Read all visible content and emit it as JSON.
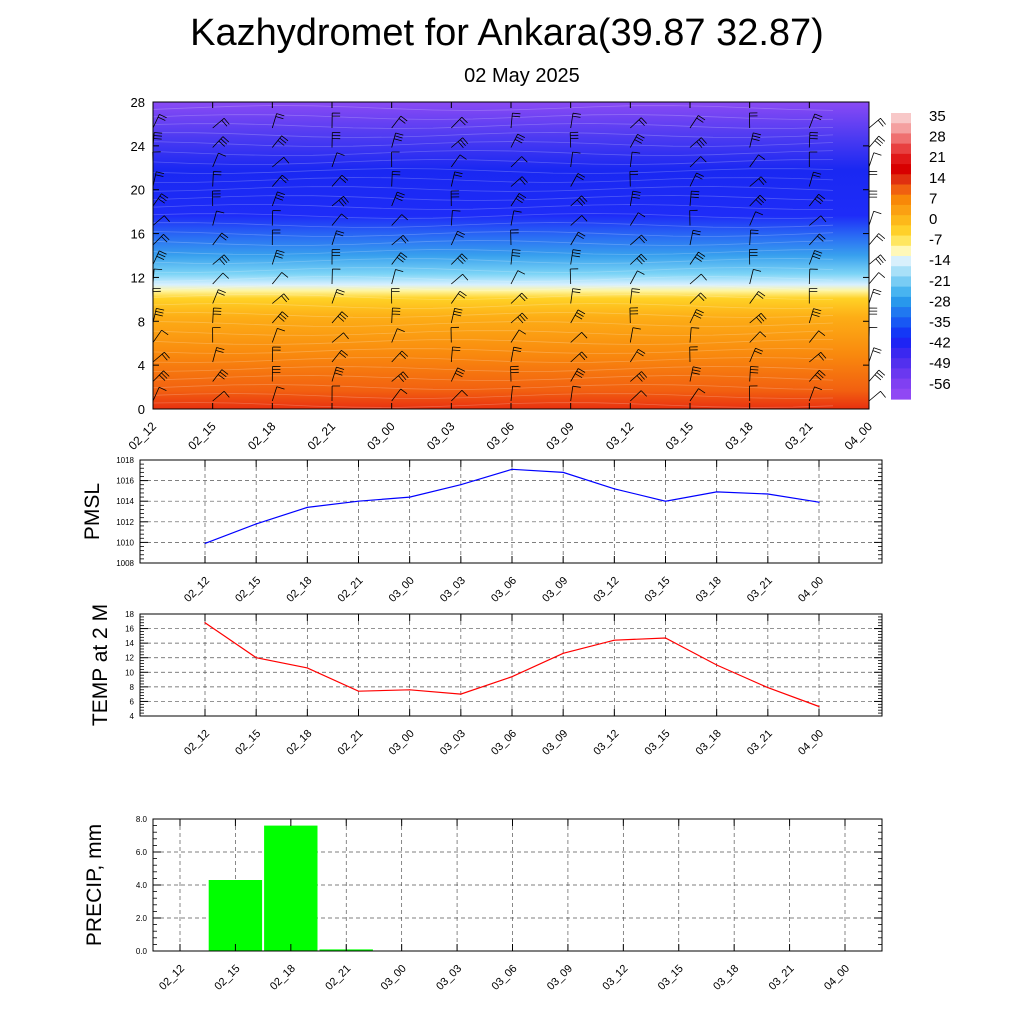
{
  "title": "Kazhydromet for Ankara(39.87 32.87)",
  "subtitle": "02 May 2025",
  "chart_data": [
    {
      "type": "heatmap",
      "x": [
        "02_12",
        "02_15",
        "02_18",
        "02_21",
        "03_00",
        "03_03",
        "03_06",
        "03_09",
        "03_12",
        "03_15",
        "03_18",
        "03_21",
        "04_00"
      ],
      "ylim": [
        0,
        28
      ],
      "yticks": [
        0,
        4,
        8,
        12,
        16,
        20,
        24,
        28
      ],
      "colorbar": {
        "labels": [
          "35",
          "28",
          "21",
          "14",
          "7",
          "0",
          "-7",
          "-14",
          "-21",
          "-28",
          "-35",
          "-42",
          "-49",
          "-56"
        ],
        "range": [
          -63,
          42
        ]
      },
      "overlay": "wind barbs"
    },
    {
      "type": "line",
      "ylabel": "PMSL",
      "x": [
        "02_12",
        "02_15",
        "02_18",
        "02_21",
        "03_00",
        "03_03",
        "03_06",
        "03_09",
        "03_12",
        "03_15",
        "03_18",
        "03_21",
        "04_00"
      ],
      "series": [
        {
          "values": [
            1009.9,
            1011.8,
            1013.4,
            1014.0,
            1014.4,
            1015.6,
            1017.1,
            1016.8,
            1015.2,
            1014.0,
            1014.9,
            1014.7,
            1013.9
          ],
          "color": "#0000ff"
        }
      ],
      "ylim": [
        1008,
        1018
      ],
      "yticks": [
        "1008",
        "1010",
        "1012",
        "1014",
        "1016",
        "1018"
      ],
      "grid": true
    },
    {
      "type": "line",
      "ylabel": "TEMP at 2 M",
      "x": [
        "02_12",
        "02_15",
        "02_18",
        "02_21",
        "03_00",
        "03_03",
        "03_06",
        "03_09",
        "03_12",
        "03_15",
        "03_18",
        "03_21",
        "04_00"
      ],
      "series": [
        {
          "values": [
            16.8,
            12.0,
            10.6,
            7.4,
            7.6,
            7.0,
            9.4,
            12.6,
            14.4,
            14.7,
            11.0,
            7.9,
            5.3
          ],
          "color": "#ff0000"
        }
      ],
      "ylim": [
        4,
        18
      ],
      "yticks": [
        "4",
        "6",
        "8",
        "10",
        "12",
        "14",
        "16",
        "18"
      ],
      "grid": true
    },
    {
      "type": "bar",
      "ylabel": "PRECIP, mm",
      "categories": [
        "02_12",
        "02_15",
        "02_18",
        "02_21",
        "03_00",
        "03_03",
        "03_06",
        "03_09",
        "03_12",
        "03_15",
        "03_18",
        "03_21",
        "04_00"
      ],
      "values": [
        0,
        4.3,
        7.6,
        0.1,
        0,
        0,
        0,
        0,
        0,
        0,
        0,
        0,
        0
      ],
      "color": "#00ff00",
      "ylim": [
        0,
        8
      ],
      "yticks": [
        "0.0",
        "2.0",
        "4.0",
        "6.0",
        "8.0"
      ],
      "grid": true
    }
  ]
}
